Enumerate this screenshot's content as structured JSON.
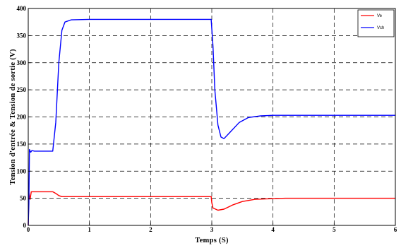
{
  "chart_data": {
    "type": "line",
    "title": "",
    "xlabel": "Temps (S)",
    "ylabel": "Tension d'entrée & Tension de sortie (V)",
    "xlim": [
      0,
      6
    ],
    "ylim": [
      0,
      400
    ],
    "xticks": [
      0,
      1,
      2,
      3,
      4,
      5,
      6
    ],
    "yticks": [
      0,
      50,
      100,
      150,
      200,
      250,
      300,
      350,
      400
    ],
    "grid": true,
    "grid_style": "dashed",
    "legend_position": "top-right",
    "series": [
      {
        "name": "Ve",
        "color": "#ff0000",
        "points": [
          [
            0,
            0
          ],
          [
            0.01,
            60
          ],
          [
            0.03,
            48
          ],
          [
            0.05,
            62
          ],
          [
            0.4,
            62
          ],
          [
            0.45,
            59
          ],
          [
            0.5,
            55
          ],
          [
            0.55,
            53
          ],
          [
            1.0,
            53
          ],
          [
            2.0,
            53
          ],
          [
            2.99,
            53
          ],
          [
            3.0,
            42
          ],
          [
            3.02,
            32
          ],
          [
            3.1,
            28
          ],
          [
            3.2,
            30
          ],
          [
            3.35,
            38
          ],
          [
            3.5,
            44
          ],
          [
            3.7,
            48
          ],
          [
            3.9,
            49
          ],
          [
            4.2,
            50
          ],
          [
            5.0,
            50
          ],
          [
            6.0,
            50
          ]
        ]
      },
      {
        "name": "Vch",
        "color": "#0000ff",
        "points": [
          [
            0,
            0
          ],
          [
            0.01,
            40
          ],
          [
            0.02,
            140
          ],
          [
            0.04,
            135
          ],
          [
            0.06,
            138
          ],
          [
            0.1,
            137
          ],
          [
            0.4,
            137
          ],
          [
            0.45,
            190
          ],
          [
            0.5,
            300
          ],
          [
            0.55,
            360
          ],
          [
            0.6,
            375
          ],
          [
            0.7,
            379
          ],
          [
            1.0,
            380
          ],
          [
            2.0,
            380
          ],
          [
            2.99,
            380
          ],
          [
            3.02,
            330
          ],
          [
            3.05,
            250
          ],
          [
            3.1,
            185
          ],
          [
            3.15,
            163
          ],
          [
            3.2,
            160
          ],
          [
            3.3,
            172
          ],
          [
            3.45,
            190
          ],
          [
            3.6,
            199
          ],
          [
            3.8,
            202
          ],
          [
            4.0,
            203
          ],
          [
            5.0,
            203
          ],
          [
            6.0,
            203
          ]
        ]
      }
    ]
  }
}
